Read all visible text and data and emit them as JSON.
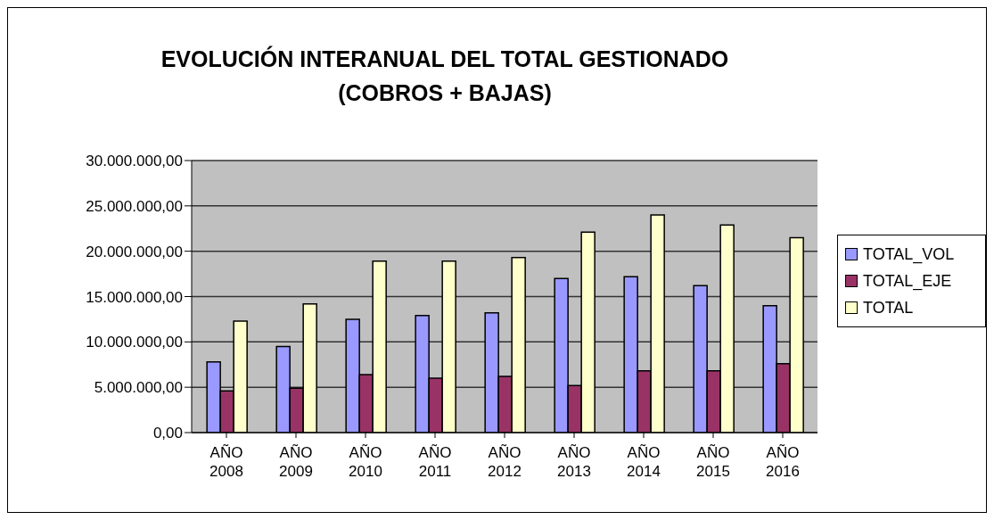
{
  "chart_data": {
    "type": "bar",
    "title": "EVOLUCIÓN INTERANUAL DEL TOTAL GESTIONADO\n(COBROS + BAJAS)",
    "categories": [
      "AÑO 2008",
      "AÑO 2009",
      "AÑO 2010",
      "AÑO 2011",
      "AÑO 2012",
      "AÑO 2013",
      "AÑO 2014",
      "AÑO 2015",
      "AÑO 2016"
    ],
    "series": [
      {
        "name": "TOTAL_VOL",
        "color": "#9999ff",
        "values": [
          7800000,
          9500000,
          12500000,
          12900000,
          13200000,
          17000000,
          17200000,
          16200000,
          14000000
        ]
      },
      {
        "name": "TOTAL_EJE",
        "color": "#993366",
        "values": [
          4600000,
          4900000,
          6400000,
          6000000,
          6200000,
          5200000,
          6800000,
          6800000,
          7600000
        ]
      },
      {
        "name": "TOTAL",
        "color": "#ffffcc",
        "values": [
          12300000,
          14200000,
          18900000,
          18900000,
          19300000,
          22100000,
          24000000,
          22900000,
          21500000
        ]
      }
    ],
    "ylim": [
      0,
      30000000
    ],
    "yticks": [
      {
        "value": 0,
        "label": "0,00"
      },
      {
        "value": 5000000,
        "label": "5.000.000,00"
      },
      {
        "value": 10000000,
        "label": "10.000.000,00"
      },
      {
        "value": 15000000,
        "label": "15.000.000,00"
      },
      {
        "value": 20000000,
        "label": "20.000.000,00"
      },
      {
        "value": 25000000,
        "label": "25.000.000,00"
      },
      {
        "value": 30000000,
        "label": "30.000.000,00"
      }
    ],
    "grid": "y",
    "legend": "right"
  }
}
